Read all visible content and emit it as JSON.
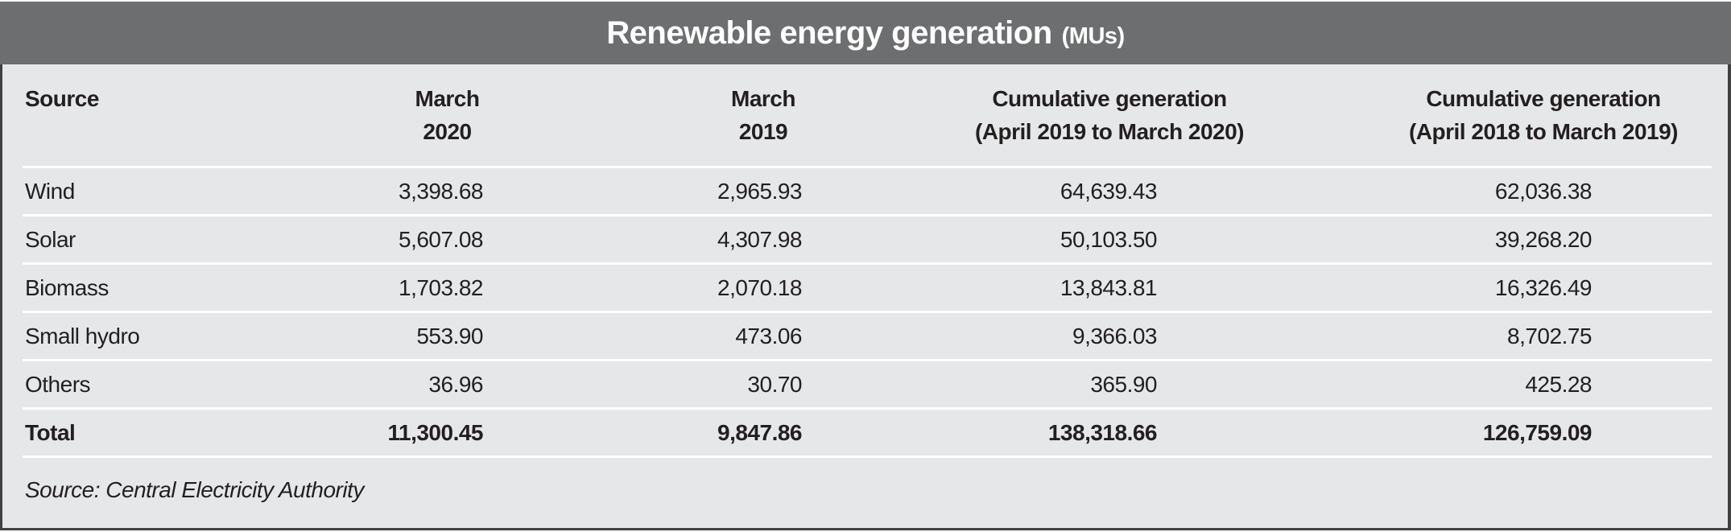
{
  "title": {
    "main": "Renewable energy generation",
    "unit": "(MUs)"
  },
  "table": {
    "columns": [
      {
        "line1": "Source",
        "line2": ""
      },
      {
        "line1": "March",
        "line2": "2020"
      },
      {
        "line1": "March",
        "line2": "2019"
      },
      {
        "line1": "Cumulative generation",
        "line2": "(April 2019 to March 2020)"
      },
      {
        "line1": "Cumulative generation",
        "line2": "(April 2018 to March 2019)"
      }
    ],
    "rows": [
      {
        "cells": [
          "Wind",
          "3,398.68",
          "2,965.93",
          "64,639.43",
          "62,036.38"
        ]
      },
      {
        "cells": [
          "Solar",
          "5,607.08",
          "4,307.98",
          "50,103.50",
          "39,268.20"
        ]
      },
      {
        "cells": [
          "Biomass",
          "1,703.82",
          "2,070.18",
          "13,843.81",
          "16,326.49"
        ]
      },
      {
        "cells": [
          "Small hydro",
          "553.90",
          "473.06",
          "9,366.03",
          "8,702.75"
        ]
      },
      {
        "cells": [
          "Others",
          "36.96",
          "30.70",
          "365.90",
          "425.28"
        ]
      },
      {
        "cells": [
          "Total",
          "11,300.45",
          "9,847.86",
          "138,318.66",
          "126,759.09"
        ]
      }
    ]
  },
  "source_note": "Source: Central Electricity Authority",
  "colors": {
    "title_band": "#6d6e70",
    "body_background": "#e6e7e8",
    "text": "#231f20",
    "row_separator": "#ffffff",
    "outer_border": "#414042",
    "title_text": "#ffffff"
  },
  "chart_data": {
    "type": "table",
    "title": "Renewable energy generation (MUs)",
    "columns": [
      "Source",
      "March 2020",
      "March 2019",
      "Cumulative generation (April 2019 to March 2020)",
      "Cumulative generation (April 2018 to March 2019)"
    ],
    "rows": [
      [
        "Wind",
        3398.68,
        2965.93,
        64639.43,
        62036.38
      ],
      [
        "Solar",
        5607.08,
        4307.98,
        50103.5,
        39268.2
      ],
      [
        "Biomass",
        1703.82,
        2070.18,
        13843.81,
        16326.49
      ],
      [
        "Small hydro",
        553.9,
        473.06,
        9366.03,
        8702.75
      ],
      [
        "Others",
        36.96,
        30.7,
        365.9,
        425.28
      ],
      [
        "Total",
        11300.45,
        9847.86,
        138318.66,
        126759.09
      ]
    ],
    "source": "Central Electricity Authority",
    "layout_hints": {
      "numeric_alignment": "right",
      "header_alignment": "center",
      "total_row_bold": true
    }
  }
}
